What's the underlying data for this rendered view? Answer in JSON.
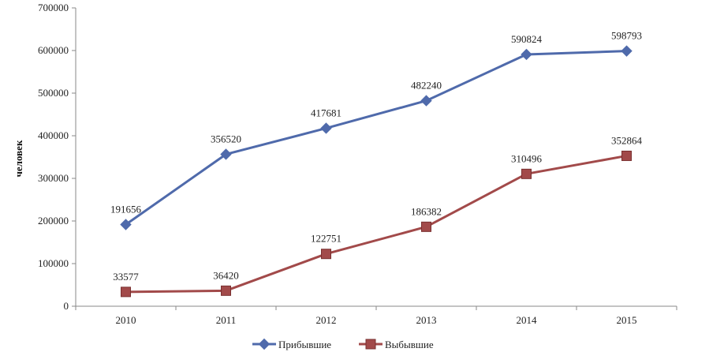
{
  "chart_data": {
    "type": "line",
    "ylabel": "человек",
    "x": [
      "2010",
      "2011",
      "2012",
      "2013",
      "2014",
      "2015"
    ],
    "ylim": [
      0,
      700000
    ],
    "yticks": [
      0,
      100000,
      200000,
      300000,
      400000,
      500000,
      600000,
      700000
    ],
    "grid": false,
    "legend_position": "bottom",
    "series": [
      {
        "name": "Прибывшие",
        "values": [
          191656,
          356520,
          417681,
          482240,
          590824,
          598793
        ],
        "labels": [
          "191656",
          "356520",
          "417681",
          "482240",
          "590824",
          "598793"
        ],
        "color": "#4f6aab",
        "marker": "diamond"
      },
      {
        "name": "Выбывшие",
        "values": [
          33577,
          36420,
          122751,
          186382,
          310496,
          352864
        ],
        "labels": [
          "33577",
          "36420",
          "122751",
          "186382",
          "310496",
          "352864"
        ],
        "color": "#a24a4a",
        "marker": "square"
      }
    ]
  }
}
